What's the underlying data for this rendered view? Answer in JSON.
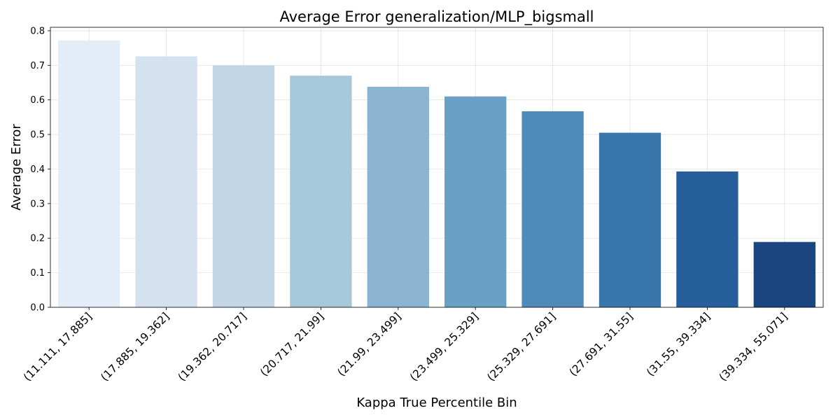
{
  "chart_data": {
    "type": "bar",
    "title": "Average Error generalization/MLP_bigsmall",
    "xlabel": "Kappa True Percentile Bin",
    "ylabel": "Average Error",
    "categories": [
      "(11.111, 17.885]",
      "(17.885, 19.362]",
      "(19.362, 20.717]",
      "(20.717, 21.99]",
      "(21.99, 23.499]",
      "(23.499, 25.329]",
      "(25.329, 27.691]",
      "(27.691, 31.55]",
      "(31.55, 39.334]",
      "(39.334, 55.071]"
    ],
    "values": [
      0.772,
      0.726,
      0.7,
      0.67,
      0.638,
      0.61,
      0.567,
      0.505,
      0.393,
      0.189
    ],
    "colors": [
      "#e3edf7",
      "#d4e2ef",
      "#c3d7e7",
      "#a7c7da",
      "#8ab4cf",
      "#6aa0c5",
      "#4f8bb8",
      "#3976ac",
      "#275f9c",
      "#1b457e"
    ],
    "ylim": [
      0,
      0.81
    ],
    "yticks": [
      "0.0",
      "0.1",
      "0.2",
      "0.3",
      "0.4",
      "0.5",
      "0.6",
      "0.7",
      "0.8"
    ],
    "grid": true
  }
}
